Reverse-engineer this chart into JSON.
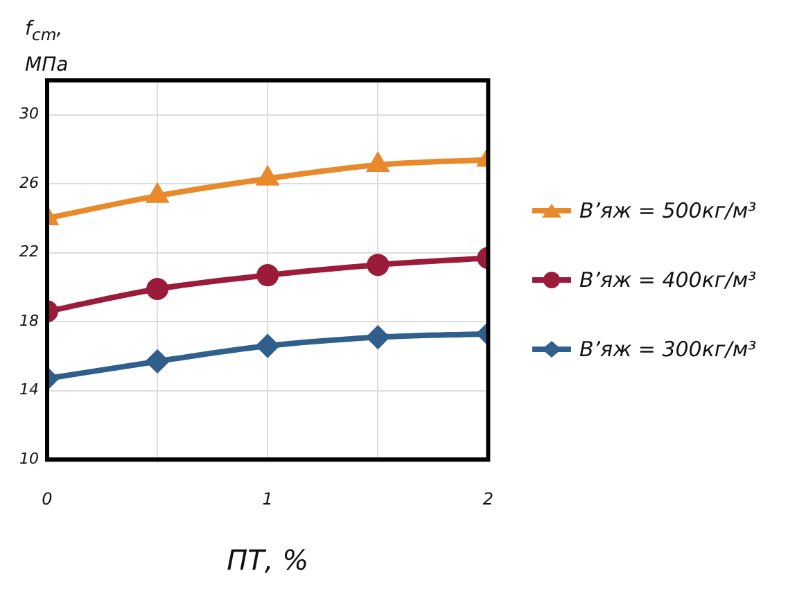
{
  "chart_data": {
    "type": "line",
    "xlabel": "ПТ, %",
    "ylabel": "f$_{cm}$, МПа",
    "x": [
      0,
      0.5,
      1,
      1.5,
      2
    ],
    "series": [
      {
        "name": "В’яж = 500кг/м³",
        "color": "#e8892b",
        "marker": "triangle",
        "values": [
          24.0,
          25.3,
          26.3,
          27.1,
          27.4
        ]
      },
      {
        "name": "В’яж = 400кг/м³",
        "color": "#9b1b3a",
        "marker": "circle",
        "values": [
          18.6,
          19.9,
          20.7,
          21.3,
          21.7
        ]
      },
      {
        "name": "В’яж = 300кг/м³",
        "color": "#2f5f8a",
        "marker": "diamond",
        "values": [
          14.7,
          15.7,
          16.6,
          17.1,
          17.3
        ]
      }
    ],
    "xlim": [
      0,
      2
    ],
    "xticks": [
      0,
      {
        "value": 0.5,
        "label": null
      },
      1,
      {
        "value": 1.5,
        "label": null
      },
      2
    ],
    "ylim": [
      10,
      32
    ],
    "yticks": [
      10,
      14,
      18,
      22,
      26,
      30
    ],
    "grid": true,
    "legend": "right"
  }
}
